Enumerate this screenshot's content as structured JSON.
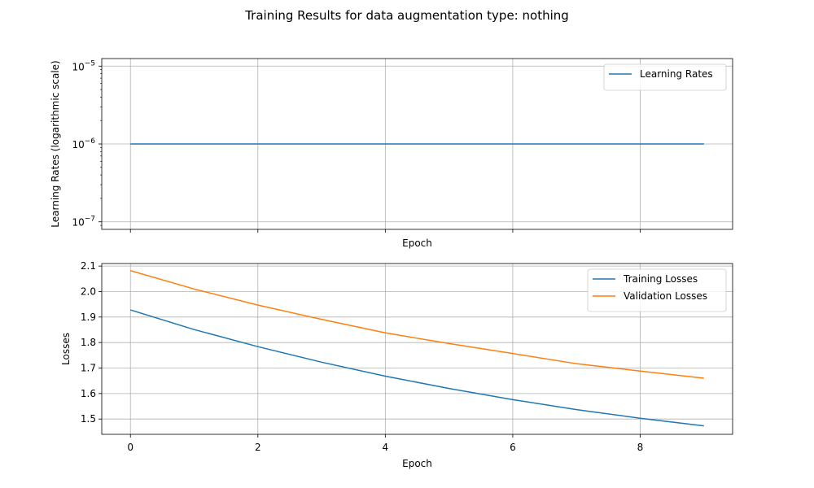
{
  "figure": {
    "title": "Training Results for data augmentation type: nothing"
  },
  "chart_data": [
    {
      "type": "line",
      "xlabel": "Epoch",
      "ylabel": "Learning Rates (logarithmic scale)",
      "yscale": "log",
      "xlim": [
        -0.45,
        9.45
      ],
      "ylim": [
        8e-08,
        1.25e-05
      ],
      "x_ticks": [
        0,
        2,
        4,
        6,
        8
      ],
      "x_tick_labels_shown": false,
      "y_ticks": [
        1e-07,
        1e-06,
        1e-05
      ],
      "y_tick_labels": [
        {
          "base": "10",
          "exp": "−7"
        },
        {
          "base": "10",
          "exp": "−6"
        },
        {
          "base": "10",
          "exp": "−5"
        }
      ],
      "grid": true,
      "legend_position": "upper right",
      "x": [
        0,
        1,
        2,
        3,
        4,
        5,
        6,
        7,
        8,
        9
      ],
      "series": [
        {
          "name": "Learning Rates",
          "color": "#1f77b4",
          "values": [
            1e-06,
            1e-06,
            1e-06,
            1e-06,
            1e-06,
            1e-06,
            1e-06,
            1e-06,
            1e-06,
            1e-06
          ]
        }
      ]
    },
    {
      "type": "line",
      "xlabel": "Epoch",
      "ylabel": "Losses",
      "yscale": "linear",
      "xlim": [
        -0.45,
        9.45
      ],
      "ylim": [
        1.44,
        2.11
      ],
      "x_ticks": [
        0,
        2,
        4,
        6,
        8
      ],
      "x_tick_labels": [
        "0",
        "2",
        "4",
        "6",
        "8"
      ],
      "x_tick_labels_shown": true,
      "y_ticks": [
        1.5,
        1.6,
        1.7,
        1.8,
        1.9,
        2.0,
        2.1
      ],
      "y_tick_labels": [
        "1.5",
        "1.6",
        "1.7",
        "1.8",
        "1.9",
        "2.0",
        "2.1"
      ],
      "grid": true,
      "legend_position": "upper right",
      "x": [
        0,
        1,
        2,
        3,
        4,
        5,
        6,
        7,
        8,
        9
      ],
      "series": [
        {
          "name": "Training Losses",
          "color": "#1f77b4",
          "values": [
            1.928,
            1.851,
            1.784,
            1.723,
            1.668,
            1.62,
            1.576,
            1.537,
            1.503,
            1.473
          ]
        },
        {
          "name": "Validation Losses",
          "color": "#ff7f0e",
          "values": [
            2.082,
            2.01,
            1.947,
            1.891,
            1.838,
            1.796,
            1.757,
            1.717,
            1.688,
            1.66
          ]
        }
      ]
    }
  ]
}
